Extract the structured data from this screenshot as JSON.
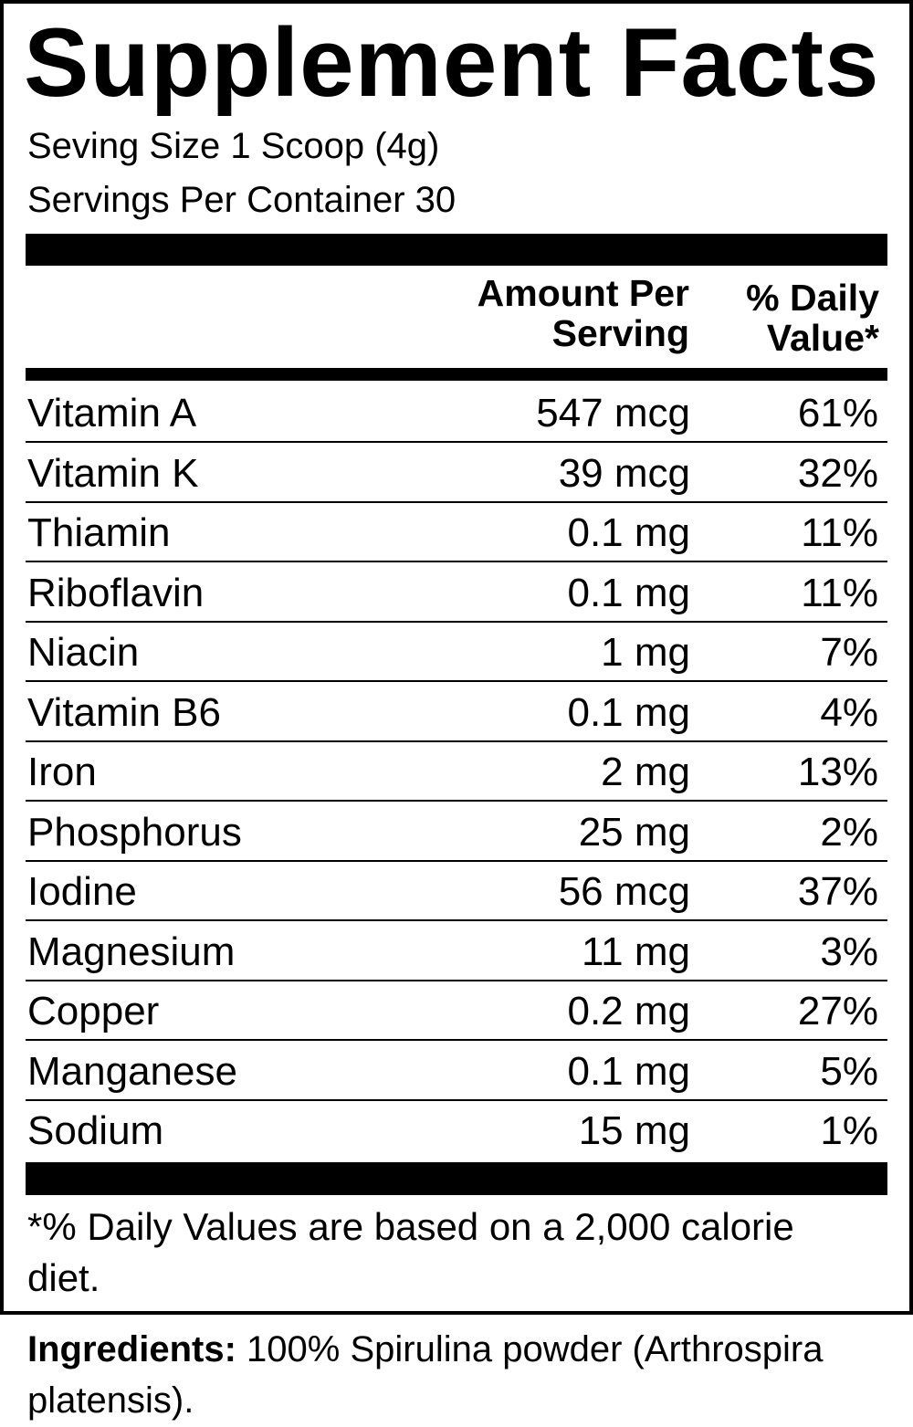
{
  "header": {
    "title": "Supplement Facts",
    "serving_size": "Seving Size 1 Scoop (4g)",
    "servings_per_container": "Servings Per Container 30"
  },
  "table": {
    "columns": [
      "Amount Per Serving",
      "% Daily Value*"
    ],
    "rows": [
      [
        "Vitamin A",
        "547 mcg",
        "61%"
      ],
      [
        "Vitamin K",
        "39 mcg",
        "32%"
      ],
      [
        "Thiamin",
        "0.1 mg",
        "11%"
      ],
      [
        "Riboflavin",
        "0.1 mg",
        "11%"
      ],
      [
        "Niacin",
        "1 mg",
        "7%"
      ],
      [
        "Vitamin B6",
        "0.1 mg",
        "4%"
      ],
      [
        "Iron",
        "2 mg",
        "13%"
      ],
      [
        "Phosphorus",
        "25 mg",
        "2%"
      ],
      [
        "Iodine",
        "56 mcg",
        "37%"
      ],
      [
        "Magnesium",
        "11 mg",
        "3%"
      ],
      [
        "Copper",
        "0.2 mg",
        "27%"
      ],
      [
        "Manganese",
        "0.1 mg",
        "5%"
      ],
      [
        "Sodium",
        "15 mg",
        "1%"
      ]
    ]
  },
  "footnote": "*% Daily Values are based on a 2,000 calorie diet.",
  "ingredients": {
    "label": "Ingredients:",
    "text": "100% Spirulina powder (Arthrospira platensis)."
  }
}
